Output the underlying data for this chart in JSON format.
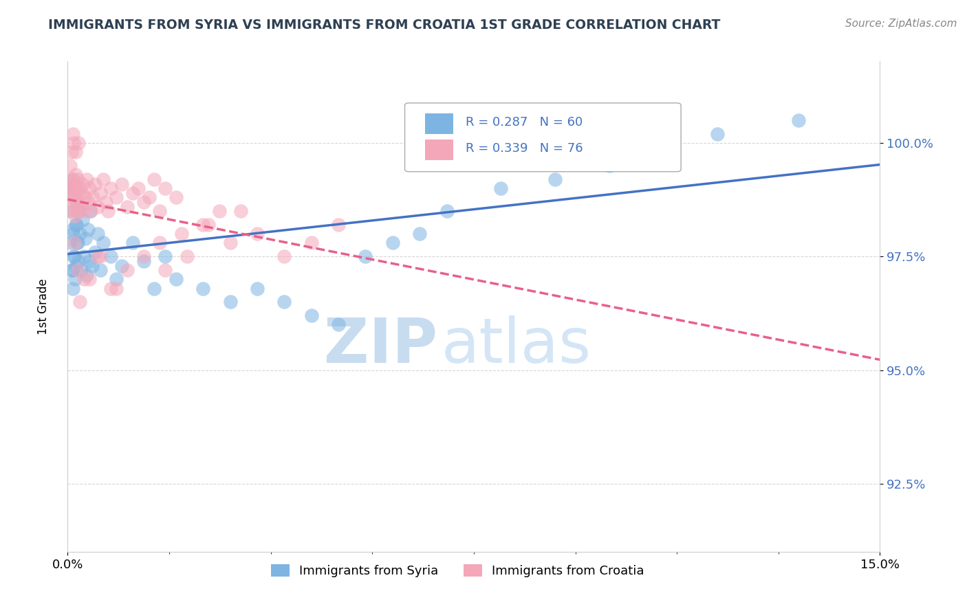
{
  "title": "IMMIGRANTS FROM SYRIA VS IMMIGRANTS FROM CROATIA 1ST GRADE CORRELATION CHART",
  "source_text": "Source: ZipAtlas.com",
  "ylabel": "1st Grade",
  "y_tick_labels": [
    "92.5%",
    "95.0%",
    "97.5%",
    "100.0%"
  ],
  "y_tick_values": [
    92.5,
    95.0,
    97.5,
    100.0
  ],
  "x_min": 0.0,
  "x_max": 15.0,
  "y_min": 91.0,
  "y_max": 101.8,
  "legend_blue_label": "Immigrants from Syria",
  "legend_pink_label": "Immigrants from Croatia",
  "R_blue": 0.287,
  "N_blue": 60,
  "R_pink": 0.339,
  "N_pink": 76,
  "color_blue": "#7EB4E2",
  "color_pink": "#F4A7B9",
  "color_blue_line": "#4472C4",
  "color_pink_line": "#E8608A",
  "legend_text_color": "#4472C4",
  "title_color": "#2E4053",
  "watermark_color": "#D6EAF8",
  "syria_x": [
    0.05,
    0.06,
    0.07,
    0.08,
    0.09,
    0.1,
    0.1,
    0.11,
    0.12,
    0.13,
    0.14,
    0.15,
    0.16,
    0.17,
    0.18,
    0.2,
    0.22,
    0.25,
    0.28,
    0.3,
    0.32,
    0.35,
    0.38,
    0.4,
    0.42,
    0.45,
    0.5,
    0.55,
    0.6,
    0.65,
    0.8,
    0.9,
    1.0,
    1.2,
    1.4,
    1.6,
    1.8,
    2.0,
    2.5,
    3.0,
    3.5,
    4.0,
    4.5,
    5.0,
    5.5,
    6.0,
    6.5,
    7.0,
    8.0,
    9.0,
    10.0,
    11.0,
    12.0,
    13.5,
    0.08,
    0.1,
    0.12,
    0.15,
    0.18,
    0.2
  ],
  "syria_y": [
    97.8,
    99.0,
    98.5,
    97.2,
    96.8,
    99.2,
    98.1,
    97.5,
    98.8,
    97.0,
    99.0,
    97.3,
    98.2,
    97.8,
    98.6,
    97.4,
    98.0,
    97.2,
    98.3,
    97.5,
    97.9,
    97.1,
    98.1,
    97.4,
    98.5,
    97.3,
    97.6,
    98.0,
    97.2,
    97.8,
    97.5,
    97.0,
    97.3,
    97.8,
    97.4,
    96.8,
    97.5,
    97.0,
    96.8,
    96.5,
    96.8,
    96.5,
    96.2,
    96.0,
    97.5,
    97.8,
    98.0,
    98.5,
    99.0,
    99.2,
    99.5,
    99.8,
    100.2,
    100.5,
    97.2,
    98.0,
    97.5,
    98.2,
    97.8,
    98.5
  ],
  "croatia_x": [
    0.02,
    0.04,
    0.05,
    0.06,
    0.07,
    0.08,
    0.09,
    0.1,
    0.11,
    0.12,
    0.13,
    0.14,
    0.15,
    0.16,
    0.17,
    0.18,
    0.19,
    0.2,
    0.22,
    0.24,
    0.26,
    0.28,
    0.3,
    0.32,
    0.35,
    0.38,
    0.4,
    0.43,
    0.46,
    0.5,
    0.55,
    0.6,
    0.65,
    0.7,
    0.75,
    0.8,
    0.9,
    1.0,
    1.1,
    1.2,
    1.3,
    1.4,
    1.5,
    1.6,
    1.7,
    1.8,
    2.0,
    2.2,
    2.5,
    2.8,
    3.0,
    3.5,
    4.0,
    4.5,
    5.0,
    1.8,
    3.2,
    0.3,
    0.55,
    0.8,
    0.12,
    0.18,
    0.22,
    0.4,
    0.6,
    0.9,
    1.1,
    1.4,
    1.7,
    2.1,
    2.6,
    0.07,
    0.09,
    0.11,
    0.15,
    0.2
  ],
  "croatia_y": [
    99.2,
    98.8,
    99.5,
    99.0,
    98.5,
    99.2,
    98.8,
    99.0,
    98.6,
    99.1,
    98.4,
    98.9,
    99.3,
    98.7,
    99.0,
    98.5,
    99.2,
    98.8,
    99.0,
    98.6,
    98.9,
    99.1,
    98.5,
    98.8,
    99.2,
    98.7,
    99.0,
    98.5,
    98.8,
    99.1,
    98.6,
    98.9,
    99.2,
    98.7,
    98.5,
    99.0,
    98.8,
    99.1,
    98.6,
    98.9,
    99.0,
    98.7,
    98.8,
    99.2,
    98.5,
    99.0,
    98.8,
    97.5,
    98.2,
    98.5,
    97.8,
    98.0,
    97.5,
    97.8,
    98.2,
    97.2,
    98.5,
    97.0,
    97.5,
    96.8,
    97.8,
    97.2,
    96.5,
    97.0,
    97.5,
    96.8,
    97.2,
    97.5,
    97.8,
    98.0,
    98.2,
    99.8,
    100.2,
    100.0,
    99.8,
    100.0
  ]
}
